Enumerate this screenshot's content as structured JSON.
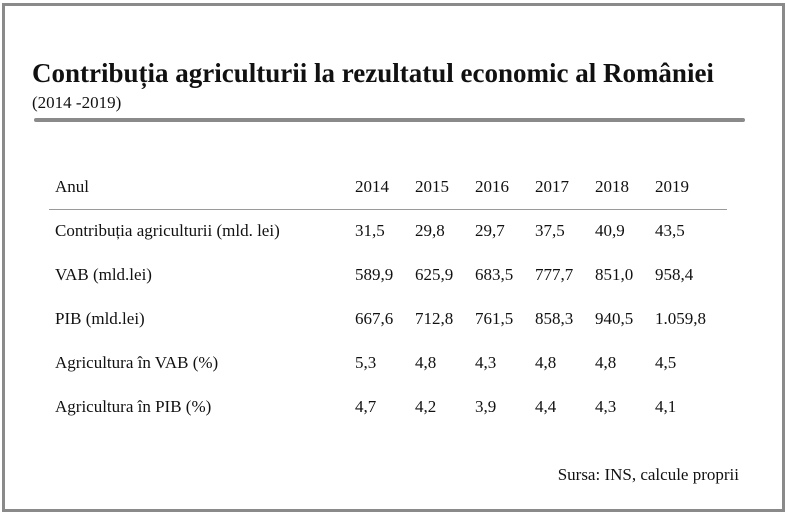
{
  "title": "Contribuția agriculturii la rezultatul economic al României",
  "subtitle": "(2014 -2019)",
  "table": {
    "header": {
      "label": "Anul",
      "years": [
        "2014",
        "2015",
        "2016",
        "2017",
        "2018",
        "2019"
      ]
    },
    "rows": [
      {
        "label": "Contribuția agriculturii (mld. lei)",
        "values": [
          "31,5",
          "29,8",
          "29,7",
          "37,5",
          "40,9",
          "43,5"
        ]
      },
      {
        "label": "VAB (mld.lei)",
        "values": [
          "589,9",
          "625,9",
          "683,5",
          "777,7",
          "851,0",
          "958,4"
        ]
      },
      {
        "label": "PIB (mld.lei)",
        "values": [
          "667,6",
          "712,8",
          "761,5",
          "858,3",
          "940,5",
          "1.059,8"
        ]
      },
      {
        "label": "Agricultura în VAB (%)",
        "values": [
          "5,3",
          "4,8",
          "4,3",
          "4,8",
          "4,8",
          "4,5"
        ]
      },
      {
        "label": "Agricultura în PIB (%)",
        "values": [
          "4,7",
          "4,2",
          "3,9",
          "4,4",
          "4,3",
          "4,1"
        ]
      }
    ]
  },
  "source": "Sursa: INS, calcule proprii"
}
